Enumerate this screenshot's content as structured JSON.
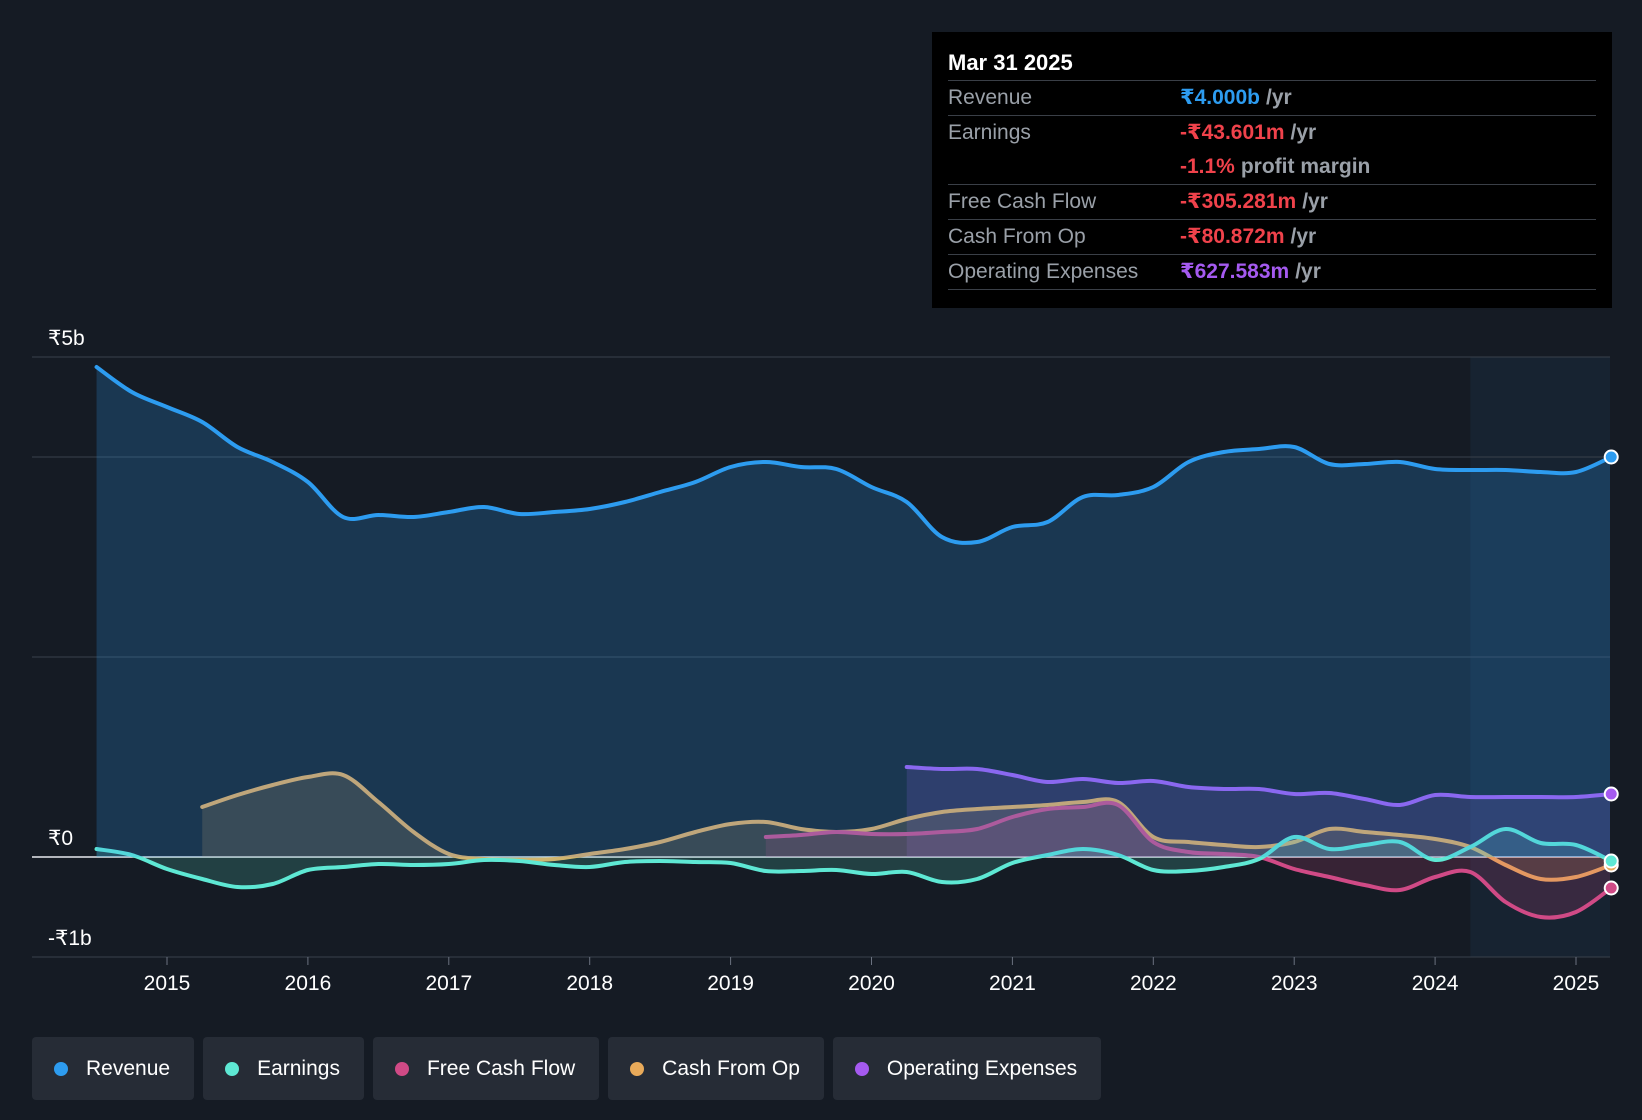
{
  "tooltip": {
    "date": "Mar 31 2025",
    "rows": [
      {
        "label": "Revenue",
        "value": "₹4.000b",
        "unit": "/yr",
        "color": "#2d9cf0"
      },
      {
        "label": "Earnings",
        "value": "-₹43.601m",
        "unit": "/yr",
        "color": "#f0424b"
      },
      {
        "label": "",
        "value": "-1.1%",
        "unit": "profit margin",
        "color": "#f0424b"
      },
      {
        "label": "Free Cash Flow",
        "value": "-₹305.281m",
        "unit": "/yr",
        "color": "#f0424b"
      },
      {
        "label": "Cash From Op",
        "value": "-₹80.872m",
        "unit": "/yr",
        "color": "#f0424b"
      },
      {
        "label": "Operating Expenses",
        "value": "₹627.583m",
        "unit": "/yr",
        "color": "#a55af0"
      }
    ]
  },
  "legend": [
    {
      "label": "Revenue",
      "color": "#2d9cf0"
    },
    {
      "label": "Earnings",
      "color": "#5ee8d4"
    },
    {
      "label": "Free Cash Flow",
      "color": "#d04a86"
    },
    {
      "label": "Cash From Op",
      "color": "#e8aa5a"
    },
    {
      "label": "Operating Expenses",
      "color": "#a55af0"
    }
  ],
  "chart_data": {
    "type": "line",
    "title": "",
    "xlabel": "",
    "ylabel": "",
    "y_tick_labels": [
      {
        "value": 5,
        "label": "₹5b"
      },
      {
        "value": 0,
        "label": "₹0"
      },
      {
        "value": -1,
        "label": "-₹1b"
      }
    ],
    "ylim": [
      -1,
      5
    ],
    "xlim": [
      2014.0,
      2025.25
    ],
    "x_ticks": [
      2015,
      2016,
      2017,
      2018,
      2019,
      2020,
      2021,
      2022,
      2023,
      2024,
      2025
    ],
    "forecast_start": 2024.25,
    "series": [
      {
        "name": "Revenue",
        "color": "#2d9cf0",
        "unit": "₹b",
        "x": [
          2014.5,
          2014.75,
          2015.0,
          2015.25,
          2015.5,
          2015.75,
          2016.0,
          2016.25,
          2016.5,
          2016.75,
          2017.0,
          2017.25,
          2017.5,
          2017.75,
          2018.0,
          2018.25,
          2018.5,
          2018.75,
          2019.0,
          2019.25,
          2019.5,
          2019.75,
          2020.0,
          2020.25,
          2020.5,
          2020.75,
          2021.0,
          2021.25,
          2021.5,
          2021.75,
          2022.0,
          2022.25,
          2022.5,
          2022.75,
          2023.0,
          2023.25,
          2023.5,
          2023.75,
          2024.0,
          2024.25,
          2024.5,
          2024.75,
          2025.0,
          2025.25
        ],
        "values": [
          4.9,
          4.65,
          4.5,
          4.35,
          4.1,
          3.95,
          3.75,
          3.4,
          3.42,
          3.4,
          3.45,
          3.5,
          3.43,
          3.45,
          3.48,
          3.55,
          3.65,
          3.75,
          3.9,
          3.95,
          3.9,
          3.88,
          3.7,
          3.55,
          3.2,
          3.15,
          3.3,
          3.35,
          3.6,
          3.62,
          3.7,
          3.95,
          4.05,
          4.08,
          4.1,
          3.93,
          3.93,
          3.95,
          3.88,
          3.87,
          3.87,
          3.85,
          3.85,
          4.0
        ]
      },
      {
        "name": "Earnings",
        "color": "#5ee8d4",
        "unit": "₹b",
        "x": [
          2014.5,
          2014.75,
          2015.0,
          2015.25,
          2015.5,
          2015.75,
          2016.0,
          2016.25,
          2016.5,
          2016.75,
          2017.0,
          2017.25,
          2017.5,
          2017.75,
          2018.0,
          2018.25,
          2018.5,
          2018.75,
          2019.0,
          2019.25,
          2019.5,
          2019.75,
          2020.0,
          2020.25,
          2020.5,
          2020.75,
          2021.0,
          2021.25,
          2021.5,
          2021.75,
          2022.0,
          2022.25,
          2022.5,
          2022.75,
          2023.0,
          2023.25,
          2023.5,
          2023.75,
          2024.0,
          2024.25,
          2024.5,
          2024.75,
          2025.0,
          2025.25
        ],
        "values": [
          0.08,
          0.02,
          -0.12,
          -0.22,
          -0.3,
          -0.27,
          -0.13,
          -0.1,
          -0.07,
          -0.08,
          -0.07,
          -0.03,
          -0.04,
          -0.08,
          -0.1,
          -0.05,
          -0.04,
          -0.05,
          -0.06,
          -0.14,
          -0.14,
          -0.13,
          -0.17,
          -0.15,
          -0.25,
          -0.22,
          -0.06,
          0.02,
          0.08,
          0.02,
          -0.13,
          -0.14,
          -0.1,
          -0.02,
          0.2,
          0.08,
          0.12,
          0.15,
          -0.03,
          0.1,
          0.28,
          0.14,
          0.12,
          -0.04
        ]
      },
      {
        "name": "Free Cash Flow",
        "color": "#d04a86",
        "unit": "₹b",
        "x": [
          2019.25,
          2019.5,
          2019.75,
          2020.0,
          2020.25,
          2020.5,
          2020.75,
          2021.0,
          2021.25,
          2021.5,
          2021.75,
          2022.0,
          2022.25,
          2022.5,
          2022.75,
          2023.0,
          2023.25,
          2023.5,
          2023.75,
          2024.0,
          2024.25,
          2024.5,
          2024.75,
          2025.0,
          2025.25
        ],
        "values": [
          0.2,
          0.22,
          0.25,
          0.23,
          0.23,
          0.25,
          0.28,
          0.4,
          0.48,
          0.5,
          0.52,
          0.15,
          0.05,
          0.03,
          0.0,
          -0.12,
          -0.2,
          -0.28,
          -0.33,
          -0.2,
          -0.15,
          -0.45,
          -0.6,
          -0.55,
          -0.31
        ]
      },
      {
        "name": "Cash From Op",
        "color": "#e8aa5a",
        "unit": "₹b",
        "x": [
          2015.25,
          2015.5,
          2015.75,
          2016.0,
          2016.25,
          2016.5,
          2016.75,
          2017.0,
          2017.25,
          2017.5,
          2017.75,
          2018.0,
          2018.25,
          2018.5,
          2018.75,
          2019.0,
          2019.25,
          2019.5,
          2019.75,
          2020.0,
          2020.25,
          2020.5,
          2020.75,
          2021.0,
          2021.25,
          2021.5,
          2021.75,
          2022.0,
          2022.25,
          2022.5,
          2022.75,
          2023.0,
          2023.25,
          2023.5,
          2023.75,
          2024.0,
          2024.25,
          2024.5,
          2024.75,
          2025.0,
          2025.25
        ],
        "values": [
          0.5,
          0.62,
          0.72,
          0.8,
          0.82,
          0.55,
          0.25,
          0.03,
          -0.02,
          -0.03,
          -0.02,
          0.03,
          0.08,
          0.15,
          0.25,
          0.33,
          0.35,
          0.28,
          0.25,
          0.28,
          0.38,
          0.45,
          0.48,
          0.5,
          0.52,
          0.55,
          0.55,
          0.2,
          0.15,
          0.12,
          0.1,
          0.15,
          0.28,
          0.25,
          0.22,
          0.18,
          0.1,
          -0.08,
          -0.22,
          -0.2,
          -0.08
        ]
      },
      {
        "name": "Operating Expenses",
        "color": "#a55af0",
        "unit": "₹b",
        "x": [
          2020.25,
          2020.5,
          2020.75,
          2021.0,
          2021.25,
          2021.5,
          2021.75,
          2022.0,
          2022.25,
          2022.5,
          2022.75,
          2023.0,
          2023.25,
          2023.5,
          2023.75,
          2024.0,
          2024.25,
          2024.5,
          2024.75,
          2025.0,
          2025.25
        ],
        "values": [
          0.9,
          0.88,
          0.88,
          0.82,
          0.75,
          0.78,
          0.74,
          0.76,
          0.7,
          0.68,
          0.68,
          0.63,
          0.64,
          0.58,
          0.52,
          0.62,
          0.6,
          0.6,
          0.6,
          0.6,
          0.63
        ]
      }
    ],
    "series_order_draw": [
      "Operating Expenses",
      "Cash From Op",
      "Free Cash Flow",
      "Earnings",
      "Revenue"
    ]
  }
}
